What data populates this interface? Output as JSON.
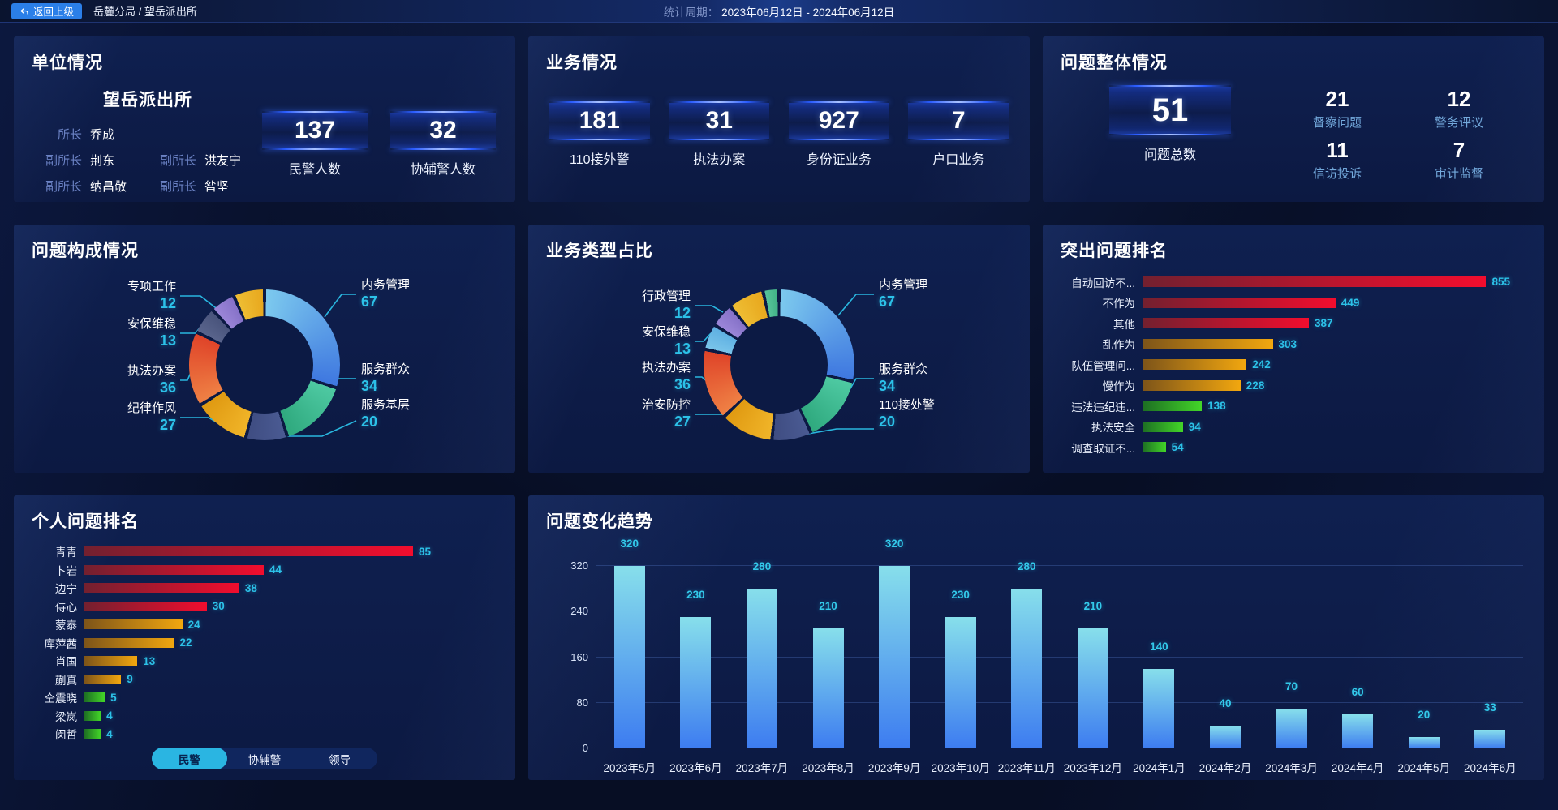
{
  "topbar": {
    "back_label": "返回上级",
    "breadcrumb": "岳麓分局 / 望岳派出所",
    "period_label": "统计周期：",
    "period_value": "2023年06月12日 - 2024年06月12日"
  },
  "unit_panel": {
    "title": "单位情况",
    "station_name": "望岳派出所",
    "leaders": [
      {
        "role": "所长",
        "name": "乔成"
      },
      {
        "role": "副所长",
        "name": "荆东"
      },
      {
        "role": "副所长",
        "name": "洪友宁"
      },
      {
        "role": "副所长",
        "name": "纳昌敬"
      },
      {
        "role": "副所长",
        "name": "昝坚"
      }
    ],
    "stats": [
      {
        "value": "137",
        "label": "民警人数"
      },
      {
        "value": "32",
        "label": "协辅警人数"
      }
    ]
  },
  "business_panel": {
    "title": "业务情况",
    "stats": [
      {
        "value": "181",
        "label": "110接外警"
      },
      {
        "value": "31",
        "label": "执法办案"
      },
      {
        "value": "927",
        "label": "身份证业务"
      },
      {
        "value": "7",
        "label": "户口业务"
      }
    ]
  },
  "overall_panel": {
    "title": "问题整体情况",
    "total": {
      "value": "51",
      "label": "问题总数"
    },
    "stats": [
      {
        "value": "21",
        "label": "督察问题"
      },
      {
        "value": "12",
        "label": "警务评议"
      },
      {
        "value": "11",
        "label": "信访投诉"
      },
      {
        "value": "7",
        "label": "审计监督"
      }
    ]
  },
  "personal_tabs": {
    "items": [
      "民警",
      "协辅警",
      "领导"
    ],
    "active": "民警"
  },
  "colors": {
    "accent_cyan": "#2cc1e8",
    "panel_bg": "#0c1a44",
    "red_bar": [
      "#73202f",
      "#f20d2e"
    ],
    "amber_bar": [
      "#7d5419",
      "#f2a70f"
    ],
    "green_bar": [
      "#1d6e23",
      "#43d528"
    ],
    "trend_bar": [
      "#87dfeb",
      "#3d7cf0"
    ]
  },
  "chart_data": [
    {
      "type": "pie",
      "title": "问题构成情况",
      "legend_position": "callouts",
      "inner_radius_ratio": 0.64,
      "segments": [
        {
          "label": "内务管理",
          "value": 67,
          "color": [
            "#7cc9ee",
            "#3f78e0"
          ]
        },
        {
          "label": "服务群众",
          "value": 34,
          "color": [
            "#4ec9a2",
            "#2fa97e"
          ]
        },
        {
          "label": "服务基层",
          "value": 20,
          "color": [
            "#4a5a92",
            "#3f4d82"
          ]
        },
        {
          "label": "纪律作风",
          "value": 27,
          "color": [
            "#f0b428",
            "#e09a12"
          ]
        },
        {
          "label": "执法办案",
          "value": 36,
          "color": [
            "#ef8044",
            "#df4429"
          ]
        },
        {
          "label": "安保维稳",
          "value": 13,
          "color": [
            "#59648c",
            "#49547c"
          ]
        },
        {
          "label": "专项工作",
          "value": 12,
          "color": [
            "#9b86d8",
            "#8672c8"
          ]
        },
        {
          "label": "",
          "value": 15,
          "color": [
            "#eebd33",
            "#e8a81e"
          ],
          "estimated": true
        }
      ]
    },
    {
      "type": "pie",
      "title": "业务类型占比",
      "legend_position": "callouts",
      "inner_radius_ratio": 0.64,
      "segments": [
        {
          "label": "内务管理",
          "value": 67,
          "color": [
            "#7cc9ee",
            "#3f78e0"
          ]
        },
        {
          "label": "服务群众",
          "value": 34,
          "color": [
            "#4ec9a2",
            "#2fa97e"
          ]
        },
        {
          "label": "110接处警",
          "value": 20,
          "color": [
            "#4a5a92",
            "#3f4d82"
          ]
        },
        {
          "label": "治安防控",
          "value": 27,
          "color": [
            "#f0b428",
            "#e09a12"
          ]
        },
        {
          "label": "执法办案",
          "value": 36,
          "color": [
            "#ef8044",
            "#df4429"
          ]
        },
        {
          "label": "安保维稳",
          "value": 13,
          "color": [
            "#79c4ea",
            "#5fb0e2"
          ]
        },
        {
          "label": "行政管理",
          "value": 12,
          "color": [
            "#9b86d8",
            "#8672c8"
          ]
        },
        {
          "label": "",
          "value": 18,
          "color": [
            "#eebd33",
            "#e8a81e"
          ],
          "estimated": true
        },
        {
          "label": "",
          "value": 8,
          "color": [
            "#57c49a",
            "#41b286"
          ],
          "estimated": true
        }
      ]
    },
    {
      "type": "bar",
      "orientation": "horizontal",
      "title": "突出问题排名",
      "max": 855,
      "items": [
        {
          "label": "自动回访不...",
          "value": 855,
          "color": [
            "#73202f",
            "#f20d2e"
          ]
        },
        {
          "label": "不作为",
          "value": 449,
          "color": [
            "#73202f",
            "#f20d2e"
          ]
        },
        {
          "label": "其他",
          "value": 387,
          "color": [
            "#73202f",
            "#f20d2e"
          ]
        },
        {
          "label": "乱作为",
          "value": 303,
          "color": [
            "#7d5419",
            "#f2a70f"
          ]
        },
        {
          "label": "队伍管理问...",
          "value": 242,
          "color": [
            "#7d5419",
            "#f2a70f"
          ]
        },
        {
          "label": "慢作为",
          "value": 228,
          "color": [
            "#7d5419",
            "#f2a70f"
          ]
        },
        {
          "label": "违法违纪违...",
          "value": 138,
          "color": [
            "#1d6e23",
            "#43d528"
          ]
        },
        {
          "label": "执法安全",
          "value": 94,
          "color": [
            "#1d6e23",
            "#43d528"
          ]
        },
        {
          "label": "调查取证不...",
          "value": 54,
          "color": [
            "#1d6e23",
            "#43d528"
          ]
        }
      ]
    },
    {
      "type": "bar",
      "orientation": "horizontal",
      "title": "个人问题排名",
      "max": 85,
      "items": [
        {
          "label": "青青",
          "value": 85,
          "color": [
            "#73202f",
            "#f20d2e"
          ]
        },
        {
          "label": "卜岩",
          "value": 44,
          "color": [
            "#73202f",
            "#f20d2e"
          ]
        },
        {
          "label": "边宁",
          "value": 38,
          "color": [
            "#73202f",
            "#f20d2e"
          ]
        },
        {
          "label": "侍心",
          "value": 30,
          "color": [
            "#73202f",
            "#f20d2e"
          ]
        },
        {
          "label": "蒙泰",
          "value": 24,
          "color": [
            "#7d5419",
            "#f2a70f"
          ]
        },
        {
          "label": "库萍茜",
          "value": 22,
          "color": [
            "#7d5419",
            "#f2a70f"
          ]
        },
        {
          "label": "肖国",
          "value": 13,
          "color": [
            "#7d5419",
            "#f2a70f"
          ]
        },
        {
          "label": "蒯真",
          "value": 9,
          "color": [
            "#7d5419",
            "#f2a70f"
          ]
        },
        {
          "label": "仝震晓",
          "value": 5,
          "color": [
            "#1d6e23",
            "#43d528"
          ]
        },
        {
          "label": "梁岚",
          "value": 4,
          "color": [
            "#1d6e23",
            "#43d528"
          ]
        },
        {
          "label": "闵哲",
          "value": 4,
          "color": [
            "#1d6e23",
            "#43d528"
          ]
        }
      ]
    },
    {
      "type": "bar",
      "orientation": "vertical",
      "title": "问题变化趋势",
      "categories": [
        "2023年5月",
        "2023年6月",
        "2023年7月",
        "2023年8月",
        "2023年9月",
        "2023年10月",
        "2023年11月",
        "2023年12月",
        "2024年1月",
        "2024年2月",
        "2024年3月",
        "2024年4月",
        "2024年5月",
        "2024年6月"
      ],
      "values": [
        320,
        230,
        280,
        210,
        320,
        230,
        280,
        210,
        140,
        40,
        70,
        60,
        20,
        33
      ],
      "y_ticks": [
        0,
        80,
        160,
        240,
        320
      ],
      "ylim": [
        0,
        320
      ],
      "grid": true,
      "bar_color": [
        "#87dfeb",
        "#3d7cf0"
      ]
    }
  ]
}
